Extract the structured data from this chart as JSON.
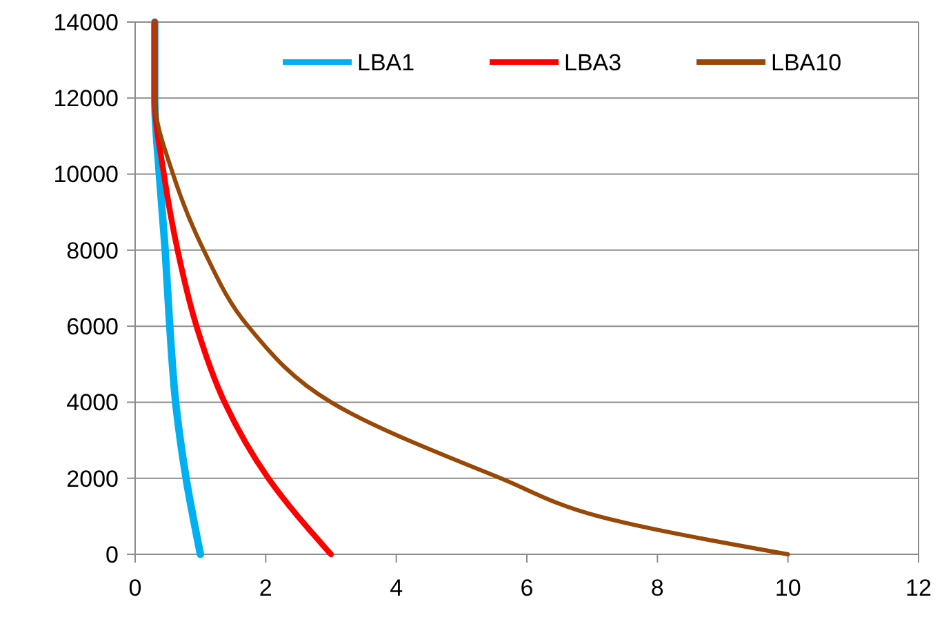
{
  "chart_data": {
    "type": "line",
    "xlim": [
      0,
      12
    ],
    "xticks": [
      0,
      2,
      4,
      6,
      8,
      10,
      12
    ],
    "ylim": [
      0,
      14000
    ],
    "yticks": [
      0,
      2000,
      4000,
      6000,
      8000,
      10000,
      12000,
      14000
    ],
    "grid": "y",
    "legend": "top right",
    "marker": "none",
    "line_style": "solid",
    "series": [
      {
        "name": "LBA1",
        "color": "#00b0f0",
        "x": [
          0.3,
          0.3,
          0.37,
          0.46,
          0.53,
          0.62,
          0.78,
          1.0
        ],
        "values": [
          14000,
          12000,
          10000,
          8000,
          6000,
          4000,
          2000,
          0
        ]
      },
      {
        "name": "LBA3",
        "color": "#ff0000",
        "x": [
          0.3,
          0.3,
          0.44,
          0.65,
          0.94,
          1.37,
          2.04,
          3.0
        ],
        "values": [
          14000,
          12000,
          10000,
          8000,
          6000,
          4000,
          2000,
          0
        ]
      },
      {
        "name": "LBA10",
        "color": "#984807",
        "x": [
          0.3,
          0.3,
          0.58,
          1.05,
          1.73,
          3.0,
          5.6,
          7.1,
          10.0
        ],
        "values": [
          14000,
          12000,
          10000,
          8000,
          6000,
          4000,
          2000,
          1000,
          0
        ]
      }
    ]
  }
}
